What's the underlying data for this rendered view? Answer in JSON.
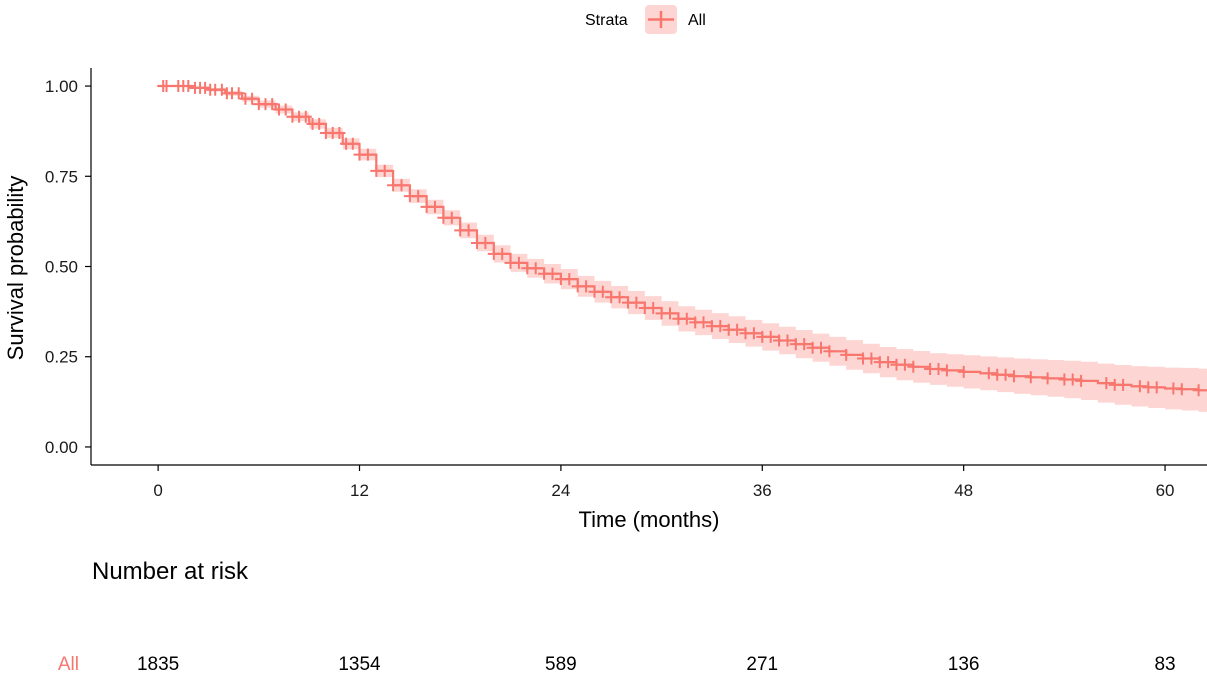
{
  "chart_data": {
    "type": "line",
    "xlabel": "Time (months)",
    "ylabel": "Survival probability",
    "xlim": [
      -4,
      62.5
    ],
    "ylim": [
      -0.05,
      1.05
    ],
    "x_ticks": [
      0,
      12,
      24,
      36,
      48,
      60
    ],
    "x_tick_labels": [
      "0",
      "12",
      "24",
      "36",
      "48",
      "60"
    ],
    "y_ticks": [
      0,
      0.25,
      0.5,
      0.75,
      1.0
    ],
    "y_tick_labels": [
      "0.00",
      "0.25",
      "0.50",
      "0.75",
      "1.00"
    ],
    "grid": false,
    "legend": {
      "title": "Strata",
      "position": "top",
      "entries": [
        {
          "label": "All",
          "color": "#f8766d"
        }
      ]
    },
    "series": [
      {
        "name": "All",
        "color": "#f8766d",
        "ci_color": "#f8766d",
        "x": [
          0,
          1,
          2,
          3,
          4,
          5,
          6,
          7,
          8,
          9,
          10,
          11,
          12,
          13,
          14,
          15,
          16,
          17,
          18,
          19,
          20,
          21,
          22,
          23,
          24,
          25,
          26,
          27,
          28,
          29,
          30,
          31,
          32,
          33,
          34,
          35,
          36,
          37,
          38,
          39,
          40,
          41,
          42,
          43,
          44,
          45,
          46,
          47,
          48,
          49,
          50,
          51,
          52,
          53,
          54,
          55,
          56,
          57,
          58,
          59,
          60,
          61,
          62,
          62.5
        ],
        "y": [
          1.0,
          1.0,
          0.995,
          0.99,
          0.98,
          0.965,
          0.95,
          0.935,
          0.915,
          0.895,
          0.87,
          0.84,
          0.81,
          0.765,
          0.725,
          0.695,
          0.665,
          0.635,
          0.6,
          0.565,
          0.535,
          0.51,
          0.495,
          0.48,
          0.465,
          0.445,
          0.43,
          0.415,
          0.4,
          0.385,
          0.37,
          0.355,
          0.345,
          0.335,
          0.325,
          0.315,
          0.305,
          0.295,
          0.285,
          0.275,
          0.265,
          0.255,
          0.245,
          0.235,
          0.228,
          0.222,
          0.216,
          0.212,
          0.208,
          0.204,
          0.2,
          0.196,
          0.193,
          0.19,
          0.187,
          0.183,
          0.177,
          0.172,
          0.168,
          0.165,
          0.162,
          0.16,
          0.157,
          0.155
        ],
        "ci_lower": [
          1.0,
          1.0,
          0.992,
          0.985,
          0.973,
          0.957,
          0.94,
          0.924,
          0.903,
          0.882,
          0.856,
          0.825,
          0.794,
          0.748,
          0.707,
          0.676,
          0.645,
          0.614,
          0.578,
          0.542,
          0.511,
          0.485,
          0.469,
          0.453,
          0.437,
          0.416,
          0.4,
          0.384,
          0.368,
          0.352,
          0.336,
          0.32,
          0.31,
          0.299,
          0.288,
          0.278,
          0.267,
          0.257,
          0.246,
          0.236,
          0.225,
          0.214,
          0.204,
          0.193,
          0.185,
          0.178,
          0.172,
          0.167,
          0.162,
          0.157,
          0.152,
          0.147,
          0.143,
          0.139,
          0.135,
          0.13,
          0.123,
          0.117,
          0.112,
          0.108,
          0.104,
          0.101,
          0.097,
          0.094
        ],
        "ci_upper": [
          1.0,
          1.0,
          0.998,
          0.995,
          0.987,
          0.973,
          0.96,
          0.946,
          0.927,
          0.908,
          0.884,
          0.855,
          0.826,
          0.782,
          0.743,
          0.714,
          0.685,
          0.656,
          0.622,
          0.588,
          0.559,
          0.535,
          0.521,
          0.507,
          0.493,
          0.474,
          0.46,
          0.446,
          0.432,
          0.418,
          0.404,
          0.39,
          0.38,
          0.371,
          0.362,
          0.352,
          0.343,
          0.333,
          0.324,
          0.314,
          0.305,
          0.296,
          0.286,
          0.277,
          0.271,
          0.266,
          0.26,
          0.257,
          0.254,
          0.251,
          0.248,
          0.245,
          0.243,
          0.241,
          0.239,
          0.236,
          0.231,
          0.227,
          0.224,
          0.222,
          0.22,
          0.219,
          0.217,
          0.216
        ],
        "censor_x": [
          0.3,
          0.5,
          1.2,
          1.5,
          1.8,
          2.2,
          2.5,
          2.8,
          3.1,
          3.4,
          3.8,
          4.1,
          4.4,
          4.8,
          5.2,
          5.6,
          6.0,
          6.4,
          6.8,
          7.2,
          7.6,
          8.0,
          8.4,
          8.8,
          9.2,
          9.6,
          10.0,
          10.4,
          10.8,
          11.2,
          11.6,
          12.0,
          12.5,
          13.0,
          13.5,
          14.0,
          14.5,
          15.0,
          15.5,
          16.0,
          16.5,
          17.0,
          17.5,
          18.0,
          18.5,
          19.0,
          19.5,
          20.0,
          20.5,
          21.0,
          21.5,
          22.0,
          22.5,
          23.0,
          23.5,
          24.0,
          24.5,
          25.0,
          25.5,
          26.0,
          26.5,
          27.0,
          27.5,
          28.0,
          28.5,
          29.0,
          29.5,
          30.0,
          30.5,
          31.0,
          31.5,
          32.0,
          32.5,
          33.0,
          33.5,
          34.0,
          34.5,
          35.0,
          35.5,
          36.0,
          36.5,
          37.0,
          37.5,
          38.0,
          38.5,
          39.0,
          39.5,
          40.0,
          41.0,
          42.0,
          42.5,
          43.0,
          43.5,
          44.0,
          44.5,
          45.0,
          46.0,
          46.5,
          47.0,
          48.0,
          49.5,
          50.0,
          50.5,
          51.0,
          52.0,
          53.0,
          54.0,
          54.5,
          55.0,
          56.5,
          57.0,
          57.5,
          58.5,
          59.0,
          59.5,
          60.5,
          61.0,
          62.0
        ]
      }
    ],
    "risk_table": {
      "title": "Number at risk",
      "strata": "All",
      "times": [
        0,
        12,
        24,
        36,
        48,
        60
      ],
      "values": [
        "1835",
        "1354",
        "589",
        "271",
        "136",
        "83"
      ]
    }
  }
}
